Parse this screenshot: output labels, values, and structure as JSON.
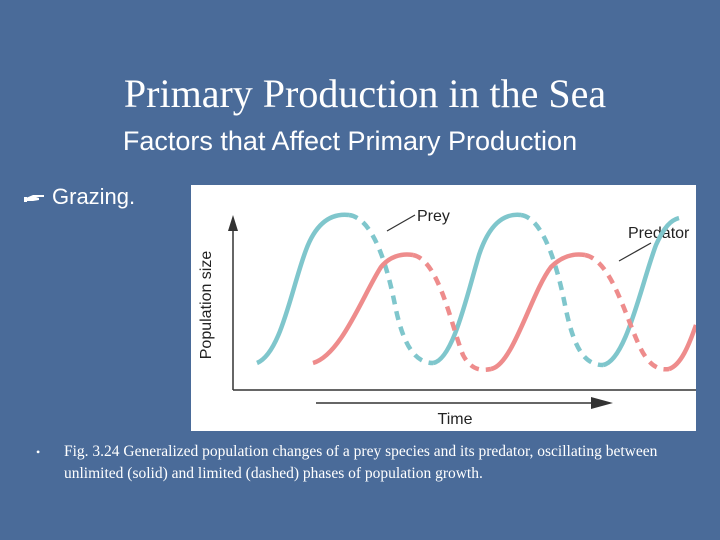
{
  "slide": {
    "title": "Primary Production in the Sea",
    "subtitle": "Factors that Affect Primary Production",
    "bullet": "Grazing.",
    "caption": "Fig. 3.24 Generalized population changes of a prey species and its predator, oscillating between unlimited (solid) and limited (dashed) phases of population growth.",
    "caption_bullet": "•"
  },
  "figure": {
    "y_axis_label": "Population size",
    "x_axis_label": "Time",
    "prey_label": "Prey",
    "predator_label": "Predator",
    "prey_color": "#7fc6cc",
    "predator_color": "#ee8c8c"
  }
}
